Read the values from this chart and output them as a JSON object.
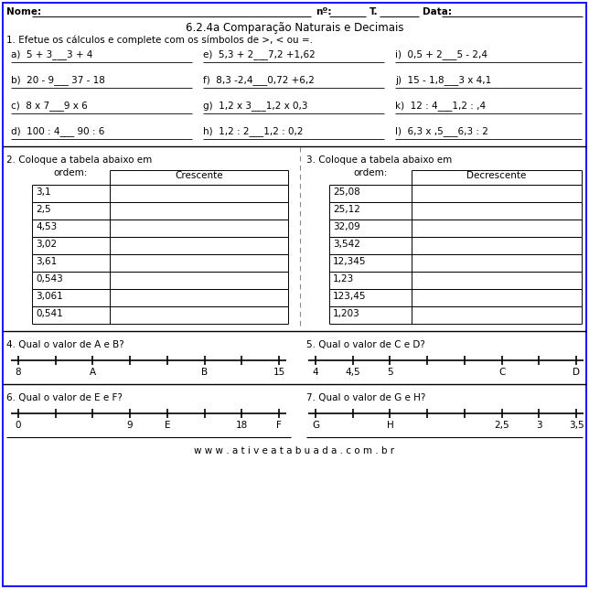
{
  "title": "6.2.4a Comparação Naturais e Decimais",
  "section1_title": "1. Efetue os cálculos e complete com os símbolos de >, < ou =.",
  "exercises_col1": [
    "a)  5 + 3___3 + 4",
    "b)  20 - 9___ 37 - 18",
    "c)  8 x 7___9 x 6",
    "d)  100 : 4___ 90 : 6"
  ],
  "exercises_col2": [
    "e)  5,3 + 2___7,2 +1,62",
    "f)  8,3 -2,4___0,72 +6,2",
    "g)  1,2 x 3___1,2 x 0,3",
    "h)  1,2 : 2___1,2 : 0,2"
  ],
  "exercises_col3": [
    "i)  0,5 + 2___5 - 2,4",
    "j)  15 - 1,8___3 x 4,1",
    "k)  12 : 4___1,2 : ,4",
    "l)  6,3 x ,5___6,3 : 2"
  ],
  "section2_title": "2. Coloque a tabela abaixo em",
  "section2_sub": "ordem:",
  "section2_header": "Crescente",
  "section2_values": [
    "3,1",
    "2,5",
    "4,53",
    "3,02",
    "3,61",
    "0,543",
    "3,061",
    "0,541"
  ],
  "section3_title": "3. Coloque a tabela abaixo em",
  "section3_sub": "ordem:",
  "section3_header": "Decrescente",
  "section3_values": [
    "25,08",
    "25,12",
    "32,09",
    "3,542",
    "12,345",
    "1,23",
    "123,45",
    "1,203"
  ],
  "section4_title": "4. Qual o valor de A e B?",
  "section4_labels": [
    "8",
    "A",
    "B",
    "15"
  ],
  "section4_label_ticks": [
    0,
    2,
    5,
    7
  ],
  "section5_title": "5. Qual o valor de C e D?",
  "section5_labels": [
    "4",
    "4,5",
    "5",
    "C",
    "D"
  ],
  "section5_label_ticks": [
    0,
    1,
    2,
    5,
    7
  ],
  "section6_title": "6. Qual o valor de E e F?",
  "section6_labels": [
    "0",
    "9",
    "E",
    "18",
    "F"
  ],
  "section6_label_ticks": [
    0,
    3,
    4,
    6,
    7
  ],
  "section7_title": "7. Qual o valor de G e H?",
  "section7_labels": [
    "G",
    "H",
    "2,5",
    "3",
    "3,5"
  ],
  "section7_label_ticks": [
    0,
    2,
    5,
    6,
    7
  ],
  "footer": "w w w . a t i v e a t a b u a d a . c o m . b r",
  "bg_color": "#ffffff",
  "text_color": "#000000",
  "border_color": "#1a1aff",
  "font_size": 7.5,
  "title_font_size": 8.5
}
